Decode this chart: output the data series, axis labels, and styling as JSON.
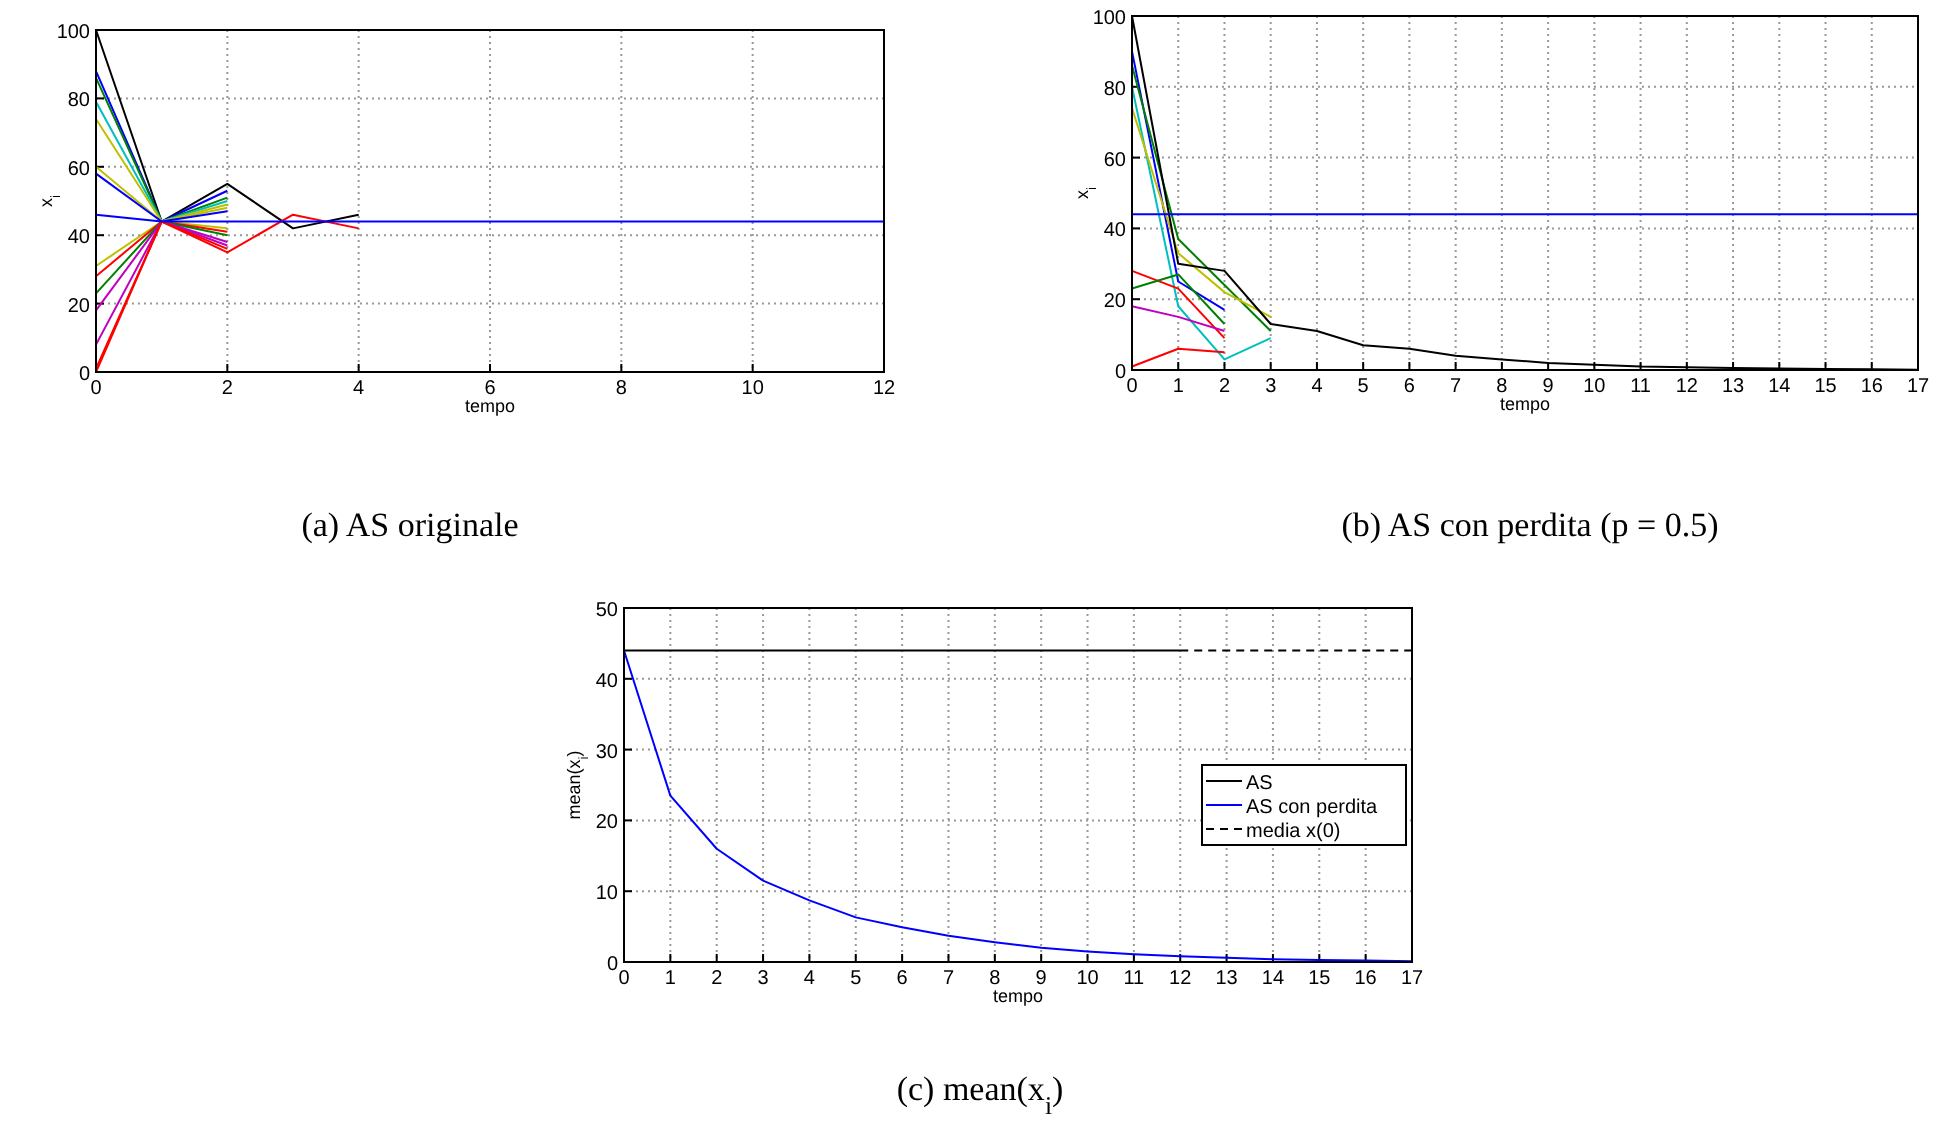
{
  "chart_data": [
    {
      "type": "line",
      "xlabel": "tempo",
      "ylabel": "x$_{i}$",
      "x": [
        0,
        1,
        2,
        3,
        4,
        5,
        6,
        7,
        8,
        9,
        10,
        11,
        12
      ],
      "xlim": [
        0,
        12
      ],
      "ylim": [
        0,
        100
      ],
      "xticks": [
        0,
        2,
        4,
        6,
        8,
        10,
        12
      ],
      "yticks": [
        0,
        20,
        40,
        60,
        80,
        100
      ],
      "grid": true,
      "annotations": [
        "(a)  AS originale"
      ],
      "series": [
        {
          "color": "#000000",
          "values": [
            100,
            44,
            55,
            42,
            46,
            null,
            null,
            null,
            null,
            null,
            null,
            null,
            null
          ]
        },
        {
          "color": "#0000ff",
          "values": [
            88,
            44,
            53,
            null,
            null,
            null,
            null,
            null,
            null,
            null,
            null,
            null,
            null
          ]
        },
        {
          "color": "#008000",
          "values": [
            86,
            44,
            51,
            null,
            null,
            null,
            null,
            null,
            null,
            null,
            null,
            null,
            null
          ]
        },
        {
          "color": "#00bfbf",
          "values": [
            79,
            44,
            50,
            null,
            null,
            null,
            null,
            null,
            null,
            null,
            null,
            null,
            null
          ]
        },
        {
          "color": "#bfbf00",
          "values": [
            74,
            44,
            49,
            null,
            null,
            null,
            null,
            null,
            null,
            null,
            null,
            null,
            null
          ]
        },
        {
          "color": "#bfbf00",
          "values": [
            60,
            44,
            48,
            null,
            null,
            null,
            null,
            null,
            null,
            null,
            null,
            null,
            null
          ]
        },
        {
          "color": "#0000ff",
          "values": [
            58,
            44,
            47,
            null,
            null,
            null,
            null,
            null,
            null,
            null,
            null,
            null,
            null
          ]
        },
        {
          "color": "#bfbf00",
          "values": [
            31,
            44,
            42,
            null,
            null,
            null,
            null,
            null,
            null,
            null,
            null,
            null,
            null
          ]
        },
        {
          "color": "#ff0000",
          "values": [
            28,
            44,
            41,
            null,
            null,
            null,
            null,
            null,
            null,
            null,
            null,
            null,
            null
          ]
        },
        {
          "color": "#008000",
          "values": [
            23,
            44,
            40,
            null,
            null,
            null,
            null,
            null,
            null,
            null,
            null,
            null,
            null
          ]
        },
        {
          "color": "#bf00bf",
          "values": [
            18,
            44,
            38,
            null,
            null,
            null,
            null,
            null,
            null,
            null,
            null,
            null,
            null
          ]
        },
        {
          "color": "#bf00bf",
          "values": [
            8,
            44,
            37,
            null,
            null,
            null,
            null,
            null,
            null,
            null,
            null,
            null,
            null
          ]
        },
        {
          "color": "#ff0000",
          "values": [
            1,
            44,
            36,
            null,
            null,
            null,
            null,
            null,
            null,
            null,
            null,
            null,
            null
          ]
        },
        {
          "color": "#ff0000",
          "values": [
            0,
            44,
            35,
            46,
            42,
            null,
            null,
            null,
            null,
            null,
            null,
            null,
            null
          ]
        },
        {
          "color": "#0000ff",
          "values": [
            46,
            44,
            44,
            44,
            44,
            44,
            44,
            44,
            44,
            44,
            44,
            44,
            44
          ]
        }
      ]
    },
    {
      "type": "line",
      "xlabel": "tempo",
      "ylabel": "x$_{i}$",
      "x": [
        0,
        1,
        2,
        3,
        4,
        5,
        6,
        7,
        8,
        9,
        10,
        11,
        12,
        13,
        14,
        15,
        16,
        17
      ],
      "xlim": [
        0,
        17
      ],
      "ylim": [
        0,
        100
      ],
      "xticks": [
        0,
        1,
        2,
        3,
        4,
        5,
        6,
        7,
        8,
        9,
        10,
        11,
        12,
        13,
        14,
        15,
        16,
        17
      ],
      "yticks": [
        0,
        20,
        40,
        60,
        80,
        100
      ],
      "grid": true,
      "annotations": [
        "(b)  AS con perdita (p = 0.5)"
      ],
      "series": [
        {
          "color": "#0000ff",
          "values": [
            90,
            25,
            17,
            null,
            null,
            null,
            null,
            null,
            null,
            null,
            null,
            null,
            null,
            null,
            null,
            null,
            null,
            null
          ]
        },
        {
          "color": "#008000",
          "values": [
            86,
            37,
            24,
            11,
            null,
            null,
            null,
            null,
            null,
            null,
            null,
            null,
            null,
            null,
            null,
            null,
            null,
            null
          ]
        },
        {
          "color": "#00bfbf",
          "values": [
            80,
            18,
            3,
            9,
            null,
            null,
            null,
            null,
            null,
            null,
            null,
            null,
            null,
            null,
            null,
            null,
            null,
            null
          ]
        },
        {
          "color": "#bfbf00",
          "values": [
            74,
            33,
            22,
            15,
            null,
            null,
            null,
            null,
            null,
            null,
            null,
            null,
            null,
            null,
            null,
            null,
            null,
            null
          ]
        },
        {
          "color": "#ff0000",
          "values": [
            28,
            23,
            9,
            null,
            null,
            null,
            null,
            null,
            null,
            null,
            null,
            null,
            null,
            null,
            null,
            null,
            null,
            null
          ]
        },
        {
          "color": "#008000",
          "values": [
            23,
            27,
            13,
            null,
            null,
            null,
            null,
            null,
            null,
            null,
            null,
            null,
            null,
            null,
            null,
            null,
            null,
            null
          ]
        },
        {
          "color": "#bf00bf",
          "values": [
            18,
            15,
            11,
            null,
            null,
            null,
            null,
            null,
            null,
            null,
            null,
            null,
            null,
            null,
            null,
            null,
            null,
            null
          ]
        },
        {
          "color": "#ff0000",
          "values": [
            1,
            6,
            5,
            null,
            null,
            null,
            null,
            null,
            null,
            null,
            null,
            null,
            null,
            null,
            null,
            null,
            null,
            null
          ]
        },
        {
          "color": "#000000",
          "values": [
            100,
            30,
            28,
            13,
            11,
            7,
            6,
            4,
            3,
            2,
            1.5,
            1,
            0.8,
            0.6,
            0.4,
            0.3,
            0.2,
            0.1
          ]
        },
        {
          "color": "#0000ff",
          "values": [
            44,
            44,
            44,
            44,
            44,
            44,
            44,
            44,
            44,
            44,
            44,
            44,
            44,
            44,
            44,
            44,
            44,
            44
          ]
        }
      ]
    },
    {
      "type": "line",
      "xlabel": "tempo",
      "ylabel": "mean(x$_{i}$)",
      "x": [
        0,
        1,
        2,
        3,
        4,
        5,
        6,
        7,
        8,
        9,
        10,
        11,
        12,
        13,
        14,
        15,
        16,
        17
      ],
      "xlim": [
        0,
        17
      ],
      "ylim": [
        0,
        50
      ],
      "xticks": [
        0,
        1,
        2,
        3,
        4,
        5,
        6,
        7,
        8,
        9,
        10,
        11,
        12,
        13,
        14,
        15,
        16,
        17
      ],
      "yticks": [
        0,
        10,
        20,
        30,
        40,
        50
      ],
      "grid": true,
      "legend": "right",
      "annotations": [
        "(c)  mean(x$_{i}$)"
      ],
      "series": [
        {
          "name": "AS",
          "color": "#000000",
          "x": [
            0,
            12
          ],
          "values": [
            44,
            44
          ]
        },
        {
          "name": "AS con perdita",
          "color": "#0000ff",
          "values": [
            44,
            23.5,
            16,
            11.5,
            8.7,
            6.3,
            4.9,
            3.7,
            2.8,
            2.0,
            1.5,
            1.1,
            0.8,
            0.6,
            0.4,
            0.3,
            0.2,
            0.1
          ]
        },
        {
          "name": "media x(0)",
          "color": "#000000",
          "line_style": "dashed",
          "values": [
            null,
            null,
            null,
            null,
            null,
            null,
            null,
            null,
            null,
            null,
            null,
            null,
            44,
            44,
            44,
            44,
            44,
            44
          ]
        }
      ]
    }
  ]
}
